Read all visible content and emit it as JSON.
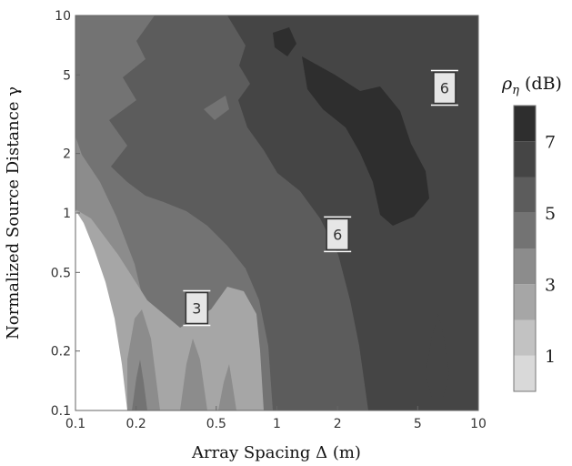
{
  "chart_data": {
    "type": "contour",
    "xlabel": "Array Spacing Δ (m)",
    "ylabel": "Normalized Source Distance γ",
    "xscale": "log",
    "yscale": "log",
    "xlim": [
      0.1,
      10
    ],
    "ylim": [
      0.1,
      10
    ],
    "x_ticks": [
      {
        "value": 0.1,
        "label": "0.1"
      },
      {
        "value": 0.2,
        "label": "0.2"
      },
      {
        "value": 0.5,
        "label": "0.5"
      },
      {
        "value": 1,
        "label": "1"
      },
      {
        "value": 2,
        "label": "2"
      },
      {
        "value": 5,
        "label": "5"
      },
      {
        "value": 10,
        "label": "10"
      }
    ],
    "y_ticks": [
      {
        "value": 0.1,
        "label": "0.1"
      },
      {
        "value": 0.2,
        "label": "0.2"
      },
      {
        "value": 0.5,
        "label": "0.5"
      },
      {
        "value": 1,
        "label": "1"
      },
      {
        "value": 2,
        "label": "2"
      },
      {
        "value": 5,
        "label": "5"
      },
      {
        "value": 10,
        "label": "10"
      }
    ],
    "colorbar": {
      "label_symbol": "ρ",
      "label_subscript": "η",
      "label_unit": " (dB)",
      "levels": [
        0,
        1,
        2,
        3,
        4,
        5,
        6,
        7,
        8
      ],
      "tick_labels": [
        {
          "value": 1,
          "label": "1"
        },
        {
          "value": 3,
          "label": "3"
        },
        {
          "value": 5,
          "label": "5"
        },
        {
          "value": 7,
          "label": "7"
        }
      ],
      "band_colors": [
        "#d9d9d9",
        "#c2c2c2",
        "#a6a6a6",
        "#8c8c8c",
        "#737373",
        "#5c5c5c",
        "#454545",
        "#2e2e2e"
      ]
    },
    "contour_labels": [
      {
        "text": "3",
        "x": 0.4,
        "y": 0.33
      },
      {
        "text": "6",
        "x": 2,
        "y": 0.78
      },
      {
        "text": "6",
        "x": 6.8,
        "y": 4.3
      }
    ]
  }
}
